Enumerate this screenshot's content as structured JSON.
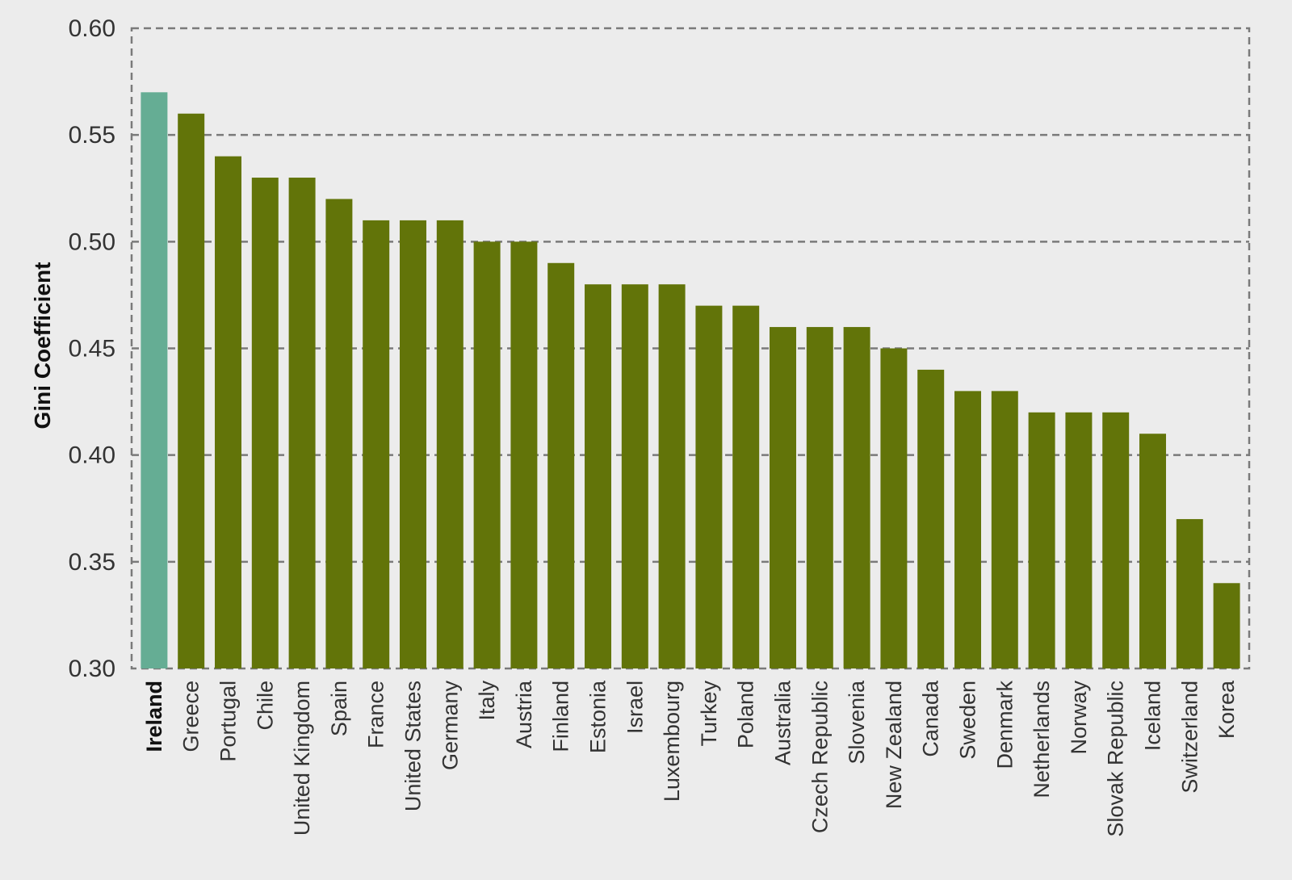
{
  "chart_data": {
    "type": "bar",
    "title": "",
    "xlabel": "",
    "ylabel": "Gini Coefficient",
    "ylim": [
      0.3,
      0.6
    ],
    "yticks": [
      "0.30",
      "0.35",
      "0.40",
      "0.45",
      "0.50",
      "0.55",
      "0.60"
    ],
    "grid": true,
    "legend": "none",
    "highlight_category": "Ireland",
    "colors": {
      "bar": "#627409",
      "highlight_bar": "#65ad94",
      "grid": "#7a7a7a",
      "background": "#ececec"
    },
    "categories": [
      "Ireland",
      "Greece",
      "Portugal",
      "Chile",
      "United Kingdom",
      "Spain",
      "France",
      "United States",
      "Germany",
      "Italy",
      "Austria",
      "Finland",
      "Estonia",
      "Israel",
      "Luxembourg",
      "Turkey",
      "Poland",
      "Australia",
      "Czech Republic",
      "Slovenia",
      "New Zealand",
      "Canada",
      "Sweden",
      "Denmark",
      "Netherlands",
      "Norway",
      "Slovak Republic",
      "Iceland",
      "Switzerland",
      "Korea"
    ],
    "values": [
      0.57,
      0.56,
      0.54,
      0.53,
      0.53,
      0.52,
      0.51,
      0.51,
      0.51,
      0.5,
      0.5,
      0.49,
      0.48,
      0.48,
      0.48,
      0.47,
      0.47,
      0.46,
      0.46,
      0.46,
      0.45,
      0.44,
      0.43,
      0.43,
      0.42,
      0.42,
      0.42,
      0.41,
      0.37,
      0.34
    ]
  }
}
